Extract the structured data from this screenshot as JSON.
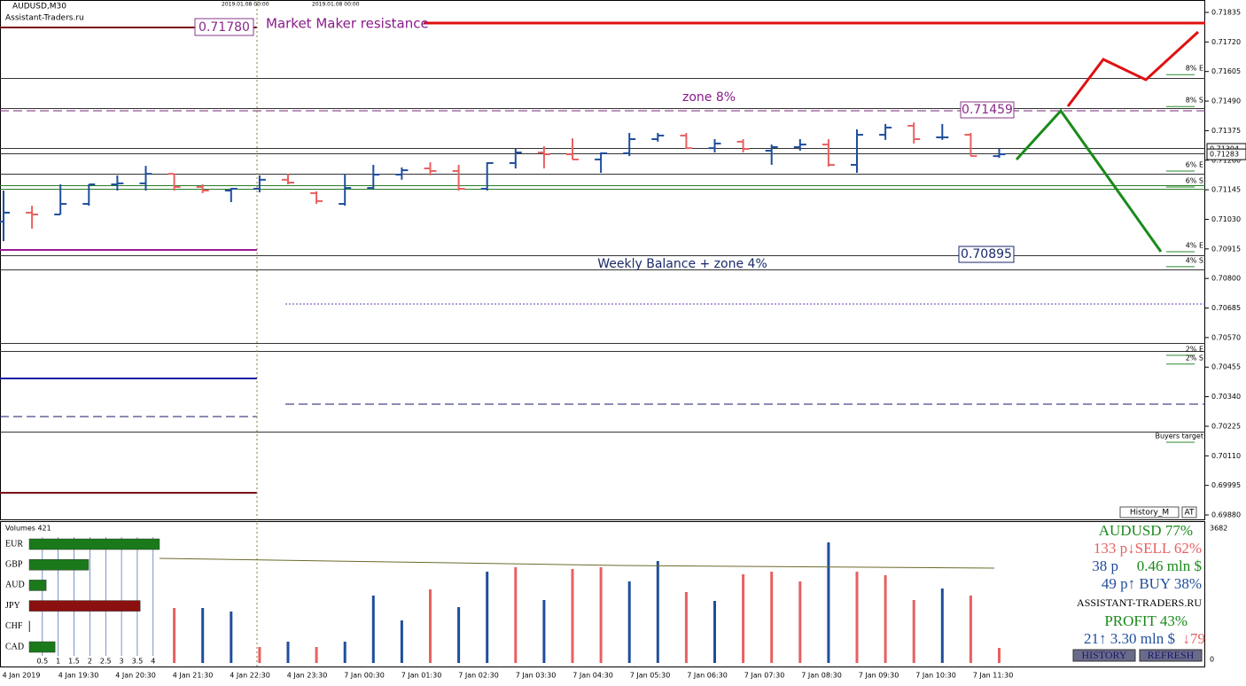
{
  "header": {
    "symbol": "AUDUSD,M30",
    "site": "Assistant-Traders.ru",
    "dates": [
      "2019.01.08 00:00",
      "2019.01.08 00:00"
    ]
  },
  "price_axis": {
    "range": [
      0.6988,
      0.71835
    ],
    "ticks": [
      {
        "value": 0.71835,
        "label": "0.71835"
      },
      {
        "value": 0.7172,
        "label": "0.71720"
      },
      {
        "value": 0.71605,
        "label": "0.71605"
      },
      {
        "value": 0.7149,
        "label": "0.71490"
      },
      {
        "value": 0.71375,
        "label": "0.71375"
      },
      {
        "value": 0.7126,
        "label": "0.71260"
      },
      {
        "value": 0.71145,
        "label": "0.71145"
      },
      {
        "value": 0.7103,
        "label": "0.71030"
      },
      {
        "value": 0.70915,
        "label": "0.70915"
      },
      {
        "value": 0.708,
        "label": "0.70800"
      },
      {
        "value": 0.70685,
        "label": "0.70685"
      },
      {
        "value": 0.7057,
        "label": "0.70570"
      },
      {
        "value": 0.70455,
        "label": "0.70455"
      },
      {
        "value": 0.7034,
        "label": "0.70340"
      },
      {
        "value": 0.70225,
        "label": "0.70225"
      },
      {
        "value": 0.7011,
        "label": "0.70110"
      },
      {
        "value": 0.69995,
        "label": "0.69995"
      },
      {
        "value": 0.6988,
        "label": "0.69880"
      }
    ],
    "current": [
      {
        "value": 0.71304,
        "label": "0.71304"
      },
      {
        "value": 0.71283,
        "label": "0.71283"
      }
    ]
  },
  "time_labels": [
    "4 Jan 2019",
    "4 Jan 19:30",
    "4 Jan 20:30",
    "4 Jan 21:30",
    "4 Jan 22:30",
    "4 Jan 23:30",
    "7 Jan 00:30",
    "7 Jan 01:30",
    "7 Jan 02:30",
    "7 Jan 03:30",
    "7 Jan 04:30",
    "7 Jan 05:30",
    "7 Jan 06:30",
    "7 Jan 07:30",
    "7 Jan 08:30",
    "7 Jan 09:30",
    "7 Jan 10:30",
    "7 Jan 11:30"
  ],
  "bars": [
    [
      0.71021,
      0.71142,
      0.70945,
      0.71056
    ],
    [
      0.71056,
      0.71083,
      0.70994,
      0.71049
    ],
    [
      0.71049,
      0.71166,
      0.71049,
      0.7109
    ],
    [
      0.7109,
      0.71166,
      0.71083,
      0.71166
    ],
    [
      0.71166,
      0.71201,
      0.71142,
      0.7117
    ],
    [
      0.7117,
      0.71238,
      0.71142,
      0.71207
    ],
    [
      0.71207,
      0.71207,
      0.71142,
      0.71156
    ],
    [
      0.71156,
      0.71166,
      0.71132,
      0.71142
    ],
    [
      0.71142,
      0.71152,
      0.71097,
      0.71149
    ],
    [
      0.71149,
      0.71201,
      0.71135,
      0.71184
    ],
    [
      0.71184,
      0.71207,
      0.71166,
      0.71173
    ],
    [
      0.71132,
      0.71139,
      0.7109,
      0.71101
    ],
    [
      0.7109,
      0.71207,
      0.71083,
      0.71152
    ],
    [
      0.71152,
      0.71242,
      0.71145,
      0.71204
    ],
    [
      0.71204,
      0.71232,
      0.71184,
      0.71221
    ],
    [
      0.71228,
      0.71252,
      0.71201,
      0.71218
    ],
    [
      0.71218,
      0.71242,
      0.71142,
      0.71149
    ],
    [
      0.71149,
      0.71252,
      0.71142,
      0.71249
    ],
    [
      0.71249,
      0.71304,
      0.71228,
      0.7129
    ],
    [
      0.7129,
      0.71314,
      0.71228,
      0.71283
    ],
    [
      0.71283,
      0.71345,
      0.71263,
      0.71263
    ],
    [
      0.71263,
      0.7129,
      0.71211,
      0.71287
    ],
    [
      0.71287,
      0.71366,
      0.71276,
      0.71342
    ],
    [
      0.71342,
      0.71366,
      0.71332,
      0.71356
    ],
    [
      0.71356,
      0.71366,
      0.71304,
      0.71307
    ],
    [
      0.71307,
      0.71342,
      0.7129,
      0.71325
    ],
    [
      0.71332,
      0.71342,
      0.7129,
      0.71304
    ],
    [
      0.71297,
      0.71321,
      0.71242,
      0.71311
    ],
    [
      0.71311,
      0.71342,
      0.71297,
      0.71321
    ],
    [
      0.71321,
      0.71342,
      0.71235,
      0.71242
    ],
    [
      0.71242,
      0.7138,
      0.71211,
      0.71359
    ],
    [
      0.71359,
      0.71401,
      0.71339,
      0.71387
    ],
    [
      0.71394,
      0.71407,
      0.71325,
      0.71342
    ],
    [
      0.71349,
      0.71401,
      0.71339,
      0.71349
    ],
    [
      0.71359,
      0.71366,
      0.71276,
      0.71276
    ],
    [
      0.71276,
      0.71304,
      0.71269,
      0.71283
    ]
  ],
  "up_color": "#1f4e9c",
  "down_color": "#e86060",
  "annotations": {
    "resistance_label": "Market Maker resistance",
    "resistance_price": "0.71780",
    "zone8_label": "zone 8%",
    "zone8_price": "0.71459",
    "balance_label": "Weekly Balance + zone 4%",
    "balance_price": "0.70895",
    "zone_tags": [
      {
        "text": "8% E",
        "y": 0.71617
      },
      {
        "text": "8% S",
        "y": 0.71493
      },
      {
        "text": "6% E",
        "y": 0.71242
      },
      {
        "text": "6% S",
        "y": 0.7118
      },
      {
        "text": "4% E",
        "y": 0.70928
      },
      {
        "text": "4% S",
        "y": 0.7087
      },
      {
        "text": "2% E",
        "y": 0.70525
      },
      {
        "text": "2% S",
        "y": 0.70491
      },
      {
        "text": "Buyers target",
        "y": 0.70187
      }
    ]
  },
  "buttons": [
    "History_M",
    "AT"
  ],
  "volumes": {
    "title": "Volumes 421",
    "max": 3682,
    "max_label": "3682",
    "zero": 0,
    "values": [
      null,
      null,
      null,
      null,
      null,
      null,
      1492,
      1492,
      1396,
      433,
      578,
      433,
      578,
      1829,
      1155,
      1998,
      1516,
      2479,
      2600,
      1709,
      2551,
      2600,
      2214,
      2768,
      1926,
      1685,
      2407,
      2479,
      2214,
      3274,
      2479,
      2383,
      1709,
      2022,
      1829,
      409
    ],
    "colors": [
      "#e86060",
      "#1f4e9c",
      "#e86060",
      "#e86060",
      "#1f4e9c",
      "#e86060",
      "#e86060",
      "#1f4e9c",
      "#1f4e9c",
      "#e86060",
      "#1f4e9c",
      "#e86060",
      "#1f4e9c",
      "#1f4e9c",
      "#1f4e9c",
      "#e86060",
      "#1f4e9c",
      "#1f4e9c",
      "#e86060",
      "#1f4e9c",
      "#e86060",
      "#e86060",
      "#1f4e9c",
      "#1f4e9c",
      "#e86060",
      "#1f4e9c",
      "#e86060",
      "#e86060",
      "#e86060",
      "#1f4e9c",
      "#e86060",
      "#e86060",
      "#e86060",
      "#1f4e9c",
      "#e86060",
      "#e86060"
    ]
  },
  "currencies": {
    "names": [
      "EUR",
      "GBP",
      "AUD",
      "JPY",
      "CHF",
      "CAD"
    ],
    "values": [
      4.2,
      1.96,
      0.62,
      3.59,
      0.1,
      0.9
    ],
    "colors": [
      "#1a7a1a",
      "#1a7a1a",
      "#1a7a1a",
      "#8b1010",
      "#1a7a1a",
      "#1a7a1a"
    ],
    "ticks": [
      0.5,
      1,
      1.5,
      2,
      2.5,
      3,
      3.5,
      4
    ]
  },
  "panel": {
    "pair": "AUDUSD 77%",
    "sell": "133 p↓SELL 62%",
    "pips": "38 p",
    "volume": "0.46 mln $",
    "buy": "49 p↑ BUY 38%",
    "site": "ASSISTANT-TRADERS.RU",
    "profit": "PROFIT 43%",
    "stats": "21↑   3.30 mln $",
    "down": "↓79",
    "history": "HISTORY",
    "refresh": "REFRESH"
  }
}
